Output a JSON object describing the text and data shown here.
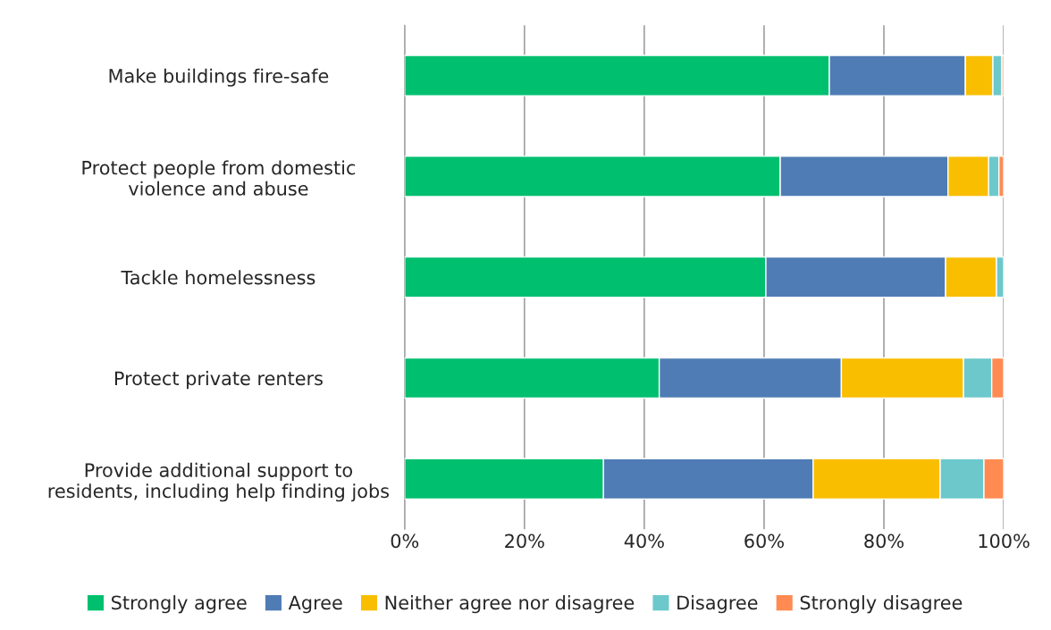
{
  "chart_data": {
    "type": "bar",
    "orientation": "horizontal",
    "stacked": true,
    "categories": [
      "Make buildings fire-safe",
      "Protect people from domestic\nviolence and abuse",
      "Tackle homelessness",
      "Protect private renters",
      "Provide additional support to\nresidents, including help finding jobs"
    ],
    "series": [
      {
        "name": "Strongly agree",
        "color": "#00bf6f",
        "values": [
          70.9,
          62.7,
          60.3,
          42.5,
          33.2
        ]
      },
      {
        "name": "Agree",
        "color": "#4f7cb5",
        "values": [
          22.7,
          28.0,
          30.0,
          30.4,
          35.0
        ]
      },
      {
        "name": "Neither agree nor disagree",
        "color": "#f9be00",
        "values": [
          4.6,
          6.8,
          8.5,
          20.4,
          21.2
        ]
      },
      {
        "name": "Disagree",
        "color": "#6cc8cb",
        "values": [
          1.5,
          1.7,
          1.2,
          4.7,
          7.3
        ]
      },
      {
        "name": "Strongly disagree",
        "color": "#ff8b52",
        "values": [
          0.3,
          0.8,
          null,
          2.0,
          3.3
        ]
      }
    ],
    "xlim": [
      0,
      100
    ],
    "xticks": [
      {
        "value": 0,
        "label": "0%"
      },
      {
        "value": 20,
        "label": "20%"
      },
      {
        "value": 40,
        "label": "40%"
      },
      {
        "value": 60,
        "label": "60%"
      },
      {
        "value": 80,
        "label": "80%"
      },
      {
        "value": 100,
        "label": "100%"
      }
    ],
    "grid": "x",
    "legend": "bottom"
  }
}
